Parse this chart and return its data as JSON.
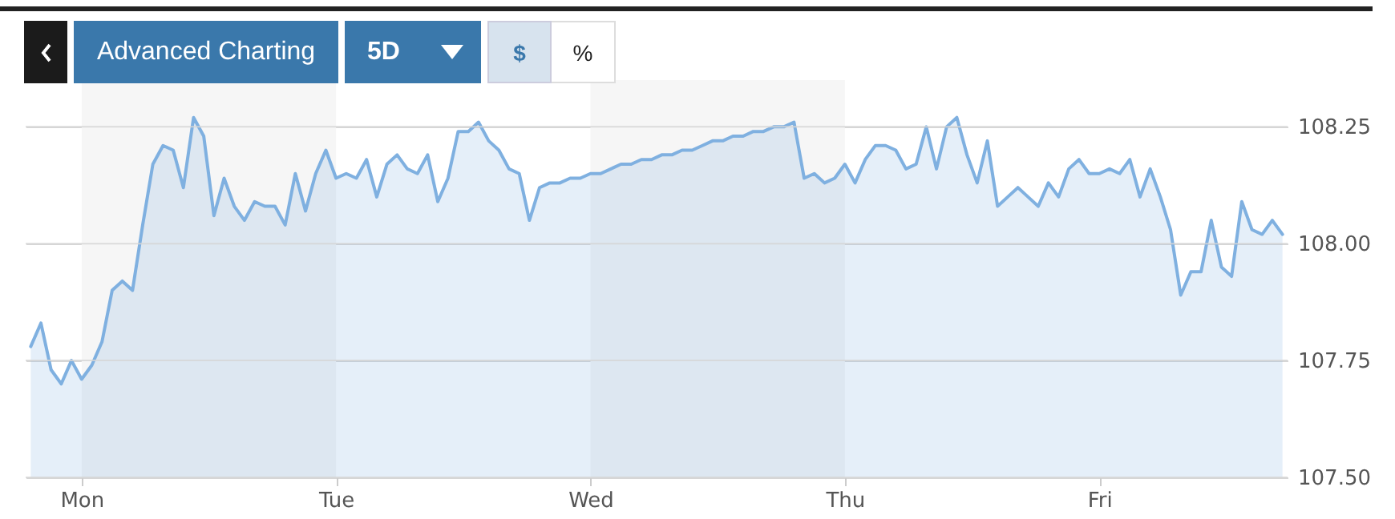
{
  "chart_data": {
    "type": "area",
    "annotations": [
      "Advanced Charting",
      "5D",
      "$",
      "%"
    ],
    "categories": [
      null,
      null,
      null,
      null,
      null,
      "Mon",
      null,
      null,
      null,
      null,
      null,
      null,
      null,
      null,
      null,
      null,
      null,
      null,
      null,
      null,
      null,
      null,
      null,
      null,
      null,
      null,
      null,
      null,
      null,
      null,
      "Tue",
      null,
      null,
      null,
      null,
      null,
      null,
      null,
      null,
      null,
      null,
      null,
      null,
      null,
      null,
      null,
      null,
      null,
      null,
      null,
      null,
      null,
      null,
      null,
      null,
      "Wed",
      null,
      null,
      null,
      null,
      null,
      null,
      null,
      null,
      null,
      null,
      null,
      null,
      null,
      null,
      null,
      null,
      null,
      null,
      null,
      null,
      null,
      null,
      null,
      null,
      "Thu",
      null,
      null,
      null,
      null,
      null,
      null,
      null,
      null,
      null,
      null,
      null,
      null,
      null,
      null,
      null,
      null,
      null,
      null,
      null,
      null,
      null,
      null,
      null,
      null,
      "Fri",
      null,
      null,
      null,
      null,
      null,
      null,
      null,
      null,
      null,
      null,
      null,
      null,
      null,
      null,
      null,
      null,
      null,
      null
    ],
    "series": [
      {
        "color": "#7fb0e0",
        "values": [
          107.78,
          107.83,
          107.73,
          107.7,
          107.75,
          107.71,
          107.74,
          107.79,
          107.9,
          107.92,
          107.9,
          108.04,
          108.17,
          108.21,
          108.2,
          108.12,
          108.27,
          108.23,
          108.06,
          108.14,
          108.08,
          108.05,
          108.09,
          108.08,
          108.08,
          108.04,
          108.15,
          108.07,
          108.15,
          108.2,
          108.14,
          108.15,
          108.14,
          108.18,
          108.1,
          108.17,
          108.19,
          108.16,
          108.15,
          108.19,
          108.09,
          108.14,
          108.24,
          108.24,
          108.26,
          108.22,
          108.2,
          108.16,
          108.15,
          108.05,
          108.12,
          108.13,
          108.13,
          108.14,
          108.14,
          108.15,
          108.15,
          108.16,
          108.17,
          108.17,
          108.18,
          108.18,
          108.19,
          108.19,
          108.2,
          108.2,
          108.21,
          108.22,
          108.22,
          108.23,
          108.23,
          108.24,
          108.24,
          108.25,
          108.25,
          108.26,
          108.14,
          108.15,
          108.13,
          108.14,
          108.17,
          108.13,
          108.18,
          108.21,
          108.21,
          108.2,
          108.16,
          108.17,
          108.25,
          108.16,
          108.25,
          108.27,
          108.19,
          108.13,
          108.22,
          108.08,
          108.1,
          108.12,
          108.1,
          108.08,
          108.13,
          108.1,
          108.16,
          108.18,
          108.15,
          108.15,
          108.16,
          108.15,
          108.18,
          108.1,
          108.16,
          108.1,
          108.03,
          107.89,
          107.94,
          107.94,
          108.05,
          107.95,
          107.93,
          108.09,
          108.03,
          108.02,
          108.05,
          108.02
        ]
      }
    ],
    "ylim": [
      107.5,
      108.35
    ],
    "yticks": [
      {
        "value": 107.5,
        "label": "107.50"
      },
      {
        "value": 107.75,
        "label": "107.75"
      },
      {
        "value": 108.0,
        "label": "108.00"
      },
      {
        "value": 108.25,
        "label": "108.25"
      }
    ],
    "grid": "y"
  }
}
